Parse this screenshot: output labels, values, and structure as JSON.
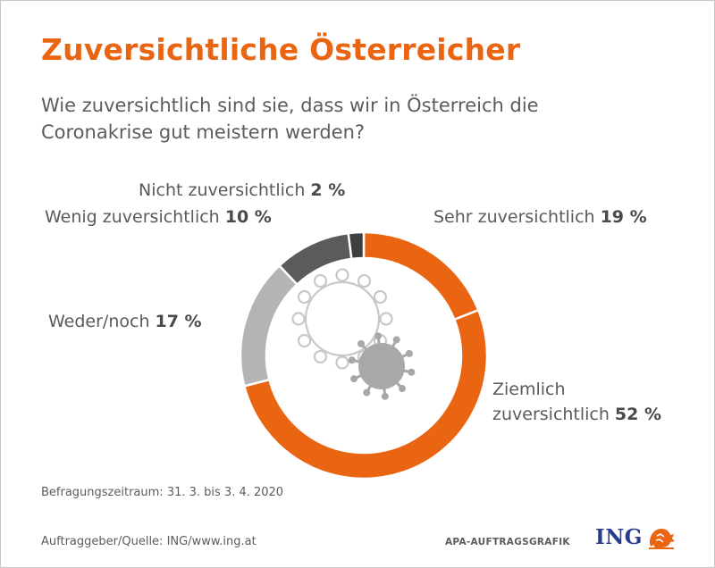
{
  "header": {
    "title": "Zuversichtliche Österreicher",
    "question": "Wie zuversichtlich sind sie, dass wir in Österreich die Coronakrise gut meistern werden?"
  },
  "chart_data": {
    "type": "pie",
    "variant": "donut",
    "slices": [
      {
        "label": "Sehr zuversichtlich",
        "value": 19,
        "value_text": "19 %",
        "color": "#ea6512"
      },
      {
        "label": "Ziemlich zuversichtlich",
        "value": 52,
        "value_text": "52 %",
        "color": "#ea6512"
      },
      {
        "label": "Weder/noch",
        "value": 17,
        "value_text": "17 %",
        "color": "#b4b4b4"
      },
      {
        "label": "Wenig zuversichtlich",
        "value": 10,
        "value_text": "10 %",
        "color": "#5b5b5b"
      },
      {
        "label": "Nicht zuversichtlich",
        "value": 2,
        "value_text": "2 %",
        "color": "#3f3f3f"
      }
    ]
  },
  "footer": {
    "period": "Befragungszeitraum: 31. 3. bis 3. 4. 2020",
    "source": "Auftraggeber/Quelle: ING/www.ing.at",
    "agency": "APA-AUFTRAGSGRAFIK",
    "brand": "ING",
    "brand_color": "#2a3d8c",
    "accent_color": "#ea6512"
  },
  "icons": [
    "virus-outline-icon",
    "virus-filled-icon",
    "ing-lion-icon"
  ]
}
